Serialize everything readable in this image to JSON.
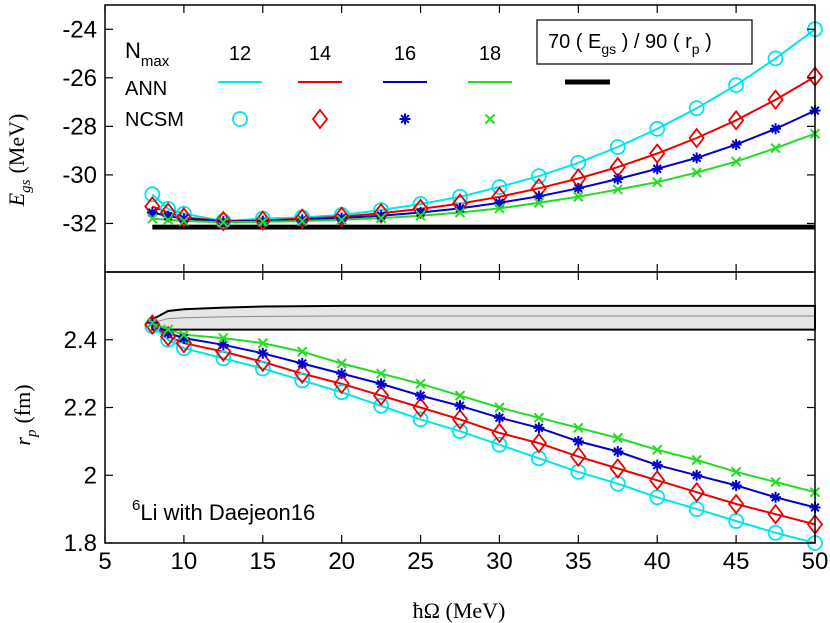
{
  "colors": {
    "n12": "#00e5ee",
    "n14": "#ee0000",
    "n16": "#0000cc",
    "n18": "#22dd22",
    "band_fill": "#e6e6e6",
    "axis": "#000000"
  },
  "chart_data": [
    {
      "type": "line",
      "panel": "top",
      "ylabel": "E_gs (MeV)",
      "xlim": [
        5,
        50
      ],
      "ylim": [
        -34,
        -23
      ],
      "yticks": [
        -32,
        -30,
        -28,
        -26,
        -24
      ],
      "ytick_labels": [
        "-32",
        "-30",
        "-28",
        "-26",
        "-24"
      ],
      "x": [
        8,
        9,
        10,
        12.5,
        15,
        17.5,
        20,
        22.5,
        25,
        27.5,
        30,
        32.5,
        35,
        37.5,
        40,
        42.5,
        45,
        47.5,
        50
      ],
      "series": [
        {
          "name": "12",
          "ncsm_marker": "circle",
          "values": [
            -30.8,
            -31.4,
            -31.6,
            -31.9,
            -31.8,
            -31.75,
            -31.65,
            -31.45,
            -31.2,
            -30.9,
            -30.5,
            -30.05,
            -29.5,
            -28.85,
            -28.1,
            -27.25,
            -26.3,
            -25.2,
            -24.0
          ]
        },
        {
          "name": "14",
          "ncsm_marker": "diamond",
          "values": [
            -31.3,
            -31.55,
            -31.75,
            -31.9,
            -31.88,
            -31.8,
            -31.72,
            -31.58,
            -31.4,
            -31.18,
            -30.9,
            -30.55,
            -30.15,
            -29.68,
            -29.12,
            -28.48,
            -27.75,
            -26.9,
            -25.95
          ]
        },
        {
          "name": "16",
          "ncsm_marker": "asterisk",
          "values": [
            -31.55,
            -31.7,
            -31.8,
            -31.92,
            -31.9,
            -31.85,
            -31.78,
            -31.68,
            -31.55,
            -31.38,
            -31.15,
            -30.88,
            -30.55,
            -30.17,
            -29.75,
            -29.3,
            -28.75,
            -28.1,
            -27.35
          ]
        },
        {
          "name": "18",
          "ncsm_marker": "cross",
          "values": [
            -31.8,
            -31.85,
            -31.9,
            -31.95,
            -31.93,
            -31.9,
            -31.85,
            -31.78,
            -31.68,
            -31.55,
            -31.38,
            -31.15,
            -30.9,
            -30.6,
            -30.3,
            -29.9,
            -29.45,
            -28.9,
            -28.3
          ]
        }
      ],
      "extrapolation_band": {
        "label": "70 (E_gs) / 90 (r_p)",
        "x_range": [
          8,
          50
        ],
        "low": -32.25,
        "high": -32.05
      }
    },
    {
      "type": "line",
      "panel": "bottom",
      "ylabel": "r_p (fm)",
      "xlabel": "ħΩ (MeV)",
      "xlim": [
        5,
        50
      ],
      "ylim": [
        1.8,
        2.6
      ],
      "xticks": [
        5,
        10,
        15,
        20,
        25,
        30,
        35,
        40,
        45,
        50
      ],
      "xtick_labels": [
        "5",
        "10",
        "15",
        "20",
        "25",
        "30",
        "35",
        "40",
        "45",
        "50"
      ],
      "yticks": [
        1.8,
        2.0,
        2.2,
        2.4
      ],
      "ytick_labels": [
        "1.8",
        "2",
        "2.2",
        "2.4"
      ],
      "x": [
        8,
        9,
        10,
        12.5,
        15,
        17.5,
        20,
        22.5,
        25,
        27.5,
        30,
        32.5,
        35,
        37.5,
        40,
        42.5,
        45,
        47.5,
        50
      ],
      "series": [
        {
          "name": "12",
          "ncsm_marker": "circle",
          "values": [
            2.44,
            2.4,
            2.375,
            2.345,
            2.315,
            2.28,
            2.245,
            2.205,
            2.165,
            2.13,
            2.09,
            2.05,
            2.01,
            1.975,
            1.935,
            1.9,
            1.865,
            1.83,
            1.8
          ]
        },
        {
          "name": "14",
          "ncsm_marker": "diamond",
          "values": [
            2.445,
            2.41,
            2.39,
            2.365,
            2.335,
            2.3,
            2.27,
            2.235,
            2.2,
            2.165,
            2.125,
            2.095,
            2.055,
            2.02,
            1.985,
            1.95,
            1.915,
            1.885,
            1.855
          ]
        },
        {
          "name": "16",
          "ncsm_marker": "asterisk",
          "values": [
            2.45,
            2.42,
            2.405,
            2.385,
            2.36,
            2.33,
            2.3,
            2.27,
            2.235,
            2.205,
            2.17,
            2.14,
            2.1,
            2.07,
            2.03,
            2.0,
            1.97,
            1.935,
            1.905
          ]
        },
        {
          "name": "18",
          "ncsm_marker": "cross",
          "values": [
            2.45,
            2.43,
            2.415,
            2.405,
            2.39,
            2.365,
            2.33,
            2.3,
            2.27,
            2.235,
            2.2,
            2.17,
            2.14,
            2.11,
            2.075,
            2.045,
            2.01,
            1.98,
            1.95
          ]
        }
      ],
      "extrapolation_band": {
        "label": "70 (E_gs) / 90 (r_p)",
        "x": [
          8,
          9,
          10,
          12.5,
          15,
          20,
          30,
          50
        ],
        "low": [
          2.43,
          2.43,
          2.43,
          2.43,
          2.43,
          2.43,
          2.43,
          2.43
        ],
        "high": [
          2.46,
          2.485,
          2.49,
          2.495,
          2.498,
          2.5,
          2.5,
          2.5
        ]
      }
    }
  ],
  "legend": {
    "nmax_label_main": "N",
    "nmax_label_sub": "max",
    "ann_label": "ANN",
    "ncsm_label": "NCSM",
    "box_prefix": "70 ( E",
    "box_sub1": "gs",
    "box_mid": " ) / 90 ( r",
    "box_sub2": "p",
    "box_suffix": " )"
  },
  "annotation": {
    "sup": "6",
    "text": "Li with Daejeon16"
  },
  "axis_text": {
    "top_ylabel_var": "E",
    "top_ylabel_sub": "gs",
    "top_ylabel_unit": "(MeV)",
    "bottom_ylabel_var": "r",
    "bottom_ylabel_sub": "p",
    "bottom_ylabel_unit": "(fm)",
    "xlabel": "ħΩ (MeV)"
  }
}
